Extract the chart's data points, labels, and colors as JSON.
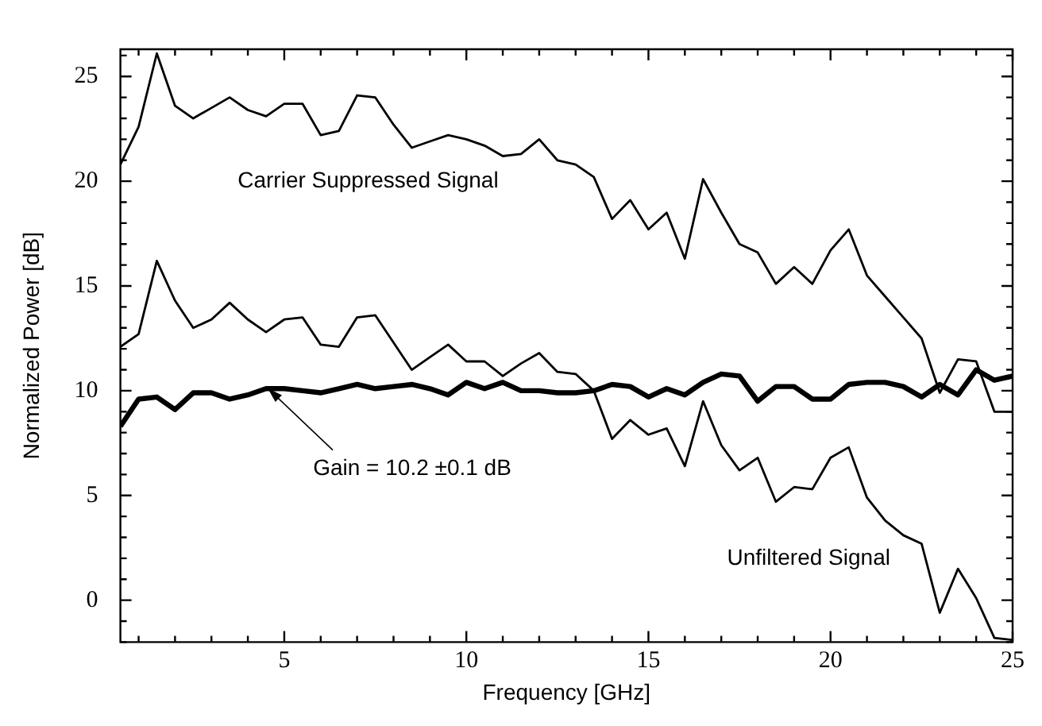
{
  "chart_data": {
    "type": "line",
    "xlabel": "Frequency [GHz]",
    "ylabel": "Normalized Power [dB]",
    "x": [
      0.5,
      1,
      1.5,
      2,
      2.5,
      3,
      3.5,
      4,
      4.5,
      5,
      5.5,
      6,
      6.5,
      7,
      7.5,
      8,
      8.5,
      9,
      9.5,
      10,
      10.5,
      11,
      11.5,
      12,
      12.5,
      13,
      13.5,
      14,
      14.5,
      15,
      15.5,
      16,
      16.5,
      17,
      17.5,
      18,
      18.5,
      19,
      19.5,
      20,
      20.5,
      21,
      21.5,
      22,
      22.5,
      23,
      23.5,
      24,
      24.5,
      25
    ],
    "series": [
      {
        "name": "Carrier Suppressed Signal",
        "color": "#000000",
        "values": [
          20.8,
          22.6,
          26.1,
          23.6,
          23.0,
          23.5,
          24.0,
          23.4,
          23.1,
          23.7,
          23.7,
          22.2,
          22.4,
          24.1,
          24.0,
          22.7,
          21.6,
          21.9,
          22.2,
          22.0,
          21.7,
          21.2,
          21.3,
          22.0,
          21.0,
          20.8,
          20.2,
          18.2,
          19.1,
          17.7,
          18.5,
          16.3,
          20.1,
          18.5,
          17.0,
          16.6,
          15.1,
          15.9,
          15.1,
          16.7,
          17.7,
          15.5,
          14.5,
          13.5,
          12.5,
          9.9,
          11.5,
          11.4,
          9.0,
          9.0
        ]
      },
      {
        "name": "Unfiltered Signal",
        "color": "#000000",
        "values": [
          12.1,
          12.7,
          16.2,
          14.3,
          13.0,
          13.4,
          14.2,
          13.4,
          12.8,
          13.4,
          13.5,
          12.2,
          12.1,
          13.5,
          13.6,
          12.3,
          11.0,
          11.6,
          12.2,
          11.4,
          11.4,
          10.7,
          11.3,
          11.8,
          10.9,
          10.8,
          10.0,
          7.7,
          8.6,
          7.9,
          8.2,
          6.4,
          9.5,
          7.4,
          6.2,
          6.8,
          4.7,
          5.4,
          5.3,
          6.8,
          7.3,
          4.9,
          3.8,
          3.1,
          2.7,
          -0.6,
          1.5,
          0.1,
          -1.8,
          -1.9
        ]
      },
      {
        "color": "#000000",
        "values": [
          8.3,
          9.6,
          9.7,
          9.1,
          9.9,
          9.9,
          9.6,
          9.8,
          10.1,
          10.1,
          10.0,
          9.9,
          10.1,
          10.3,
          10.1,
          10.2,
          10.3,
          10.1,
          9.8,
          10.4,
          10.1,
          10.4,
          10.0,
          10.0,
          9.9,
          9.9,
          10.0,
          10.3,
          10.2,
          9.7,
          10.1,
          9.8,
          10.4,
          10.8,
          10.7,
          9.5,
          10.2,
          10.2,
          9.6,
          9.6,
          10.3,
          10.4,
          10.4,
          10.2,
          9.7,
          10.3,
          9.8,
          11.0,
          10.5,
          10.7
        ]
      }
    ],
    "xlim": [
      0.5,
      25
    ],
    "ylim": [
      -2,
      26.3
    ],
    "xticks": [
      {
        "value": 1,
        "label": null
      },
      {
        "value": 2,
        "label": null
      },
      {
        "value": 3,
        "label": null
      },
      {
        "value": 4,
        "label": null
      },
      5,
      {
        "value": 6,
        "label": null
      },
      {
        "value": 7,
        "label": null
      },
      {
        "value": 8,
        "label": null
      },
      {
        "value": 9,
        "label": null
      },
      10,
      {
        "value": 11,
        "label": null
      },
      {
        "value": 12,
        "label": null
      },
      {
        "value": 13,
        "label": null
      },
      {
        "value": 14,
        "label": null
      },
      15,
      {
        "value": 16,
        "label": null
      },
      {
        "value": 17,
        "label": null
      },
      {
        "value": 18,
        "label": null
      },
      {
        "value": 19,
        "label": null
      },
      20,
      {
        "value": 21,
        "label": null
      },
      {
        "value": 22,
        "label": null
      },
      {
        "value": 23,
        "label": null
      },
      {
        "value": 24,
        "label": null
      },
      25
    ],
    "yticks": [
      {
        "value": -2,
        "label": null
      },
      {
        "value": -1,
        "label": null
      },
      0,
      {
        "value": 1,
        "label": null
      },
      {
        "value": 2,
        "label": null
      },
      {
        "value": 3,
        "label": null
      },
      {
        "value": 4,
        "label": null
      },
      5,
      {
        "value": 6,
        "label": null
      },
      {
        "value": 7,
        "label": null
      },
      {
        "value": 8,
        "label": null
      },
      {
        "value": 9,
        "label": null
      },
      10,
      {
        "value": 11,
        "label": null
      },
      {
        "value": 12,
        "label": null
      },
      {
        "value": 13,
        "label": null
      },
      {
        "value": 14,
        "label": null
      },
      15,
      {
        "value": 16,
        "label": null
      },
      {
        "value": 17,
        "label": null
      },
      {
        "value": 18,
        "label": null
      },
      {
        "value": 19,
        "label": null
      },
      20,
      {
        "value": 21,
        "label": null
      },
      {
        "value": 22,
        "label": null
      },
      {
        "value": 23,
        "label": null
      },
      {
        "value": 24,
        "label": null
      },
      25,
      {
        "value": 26,
        "label": null
      }
    ],
    "annotations": [
      {
        "text": "Gain = 10.2 ±0.1 dB",
        "x": 4.5,
        "y": 10.2
      }
    ],
    "marker": "none",
    "line_style": "solid"
  }
}
